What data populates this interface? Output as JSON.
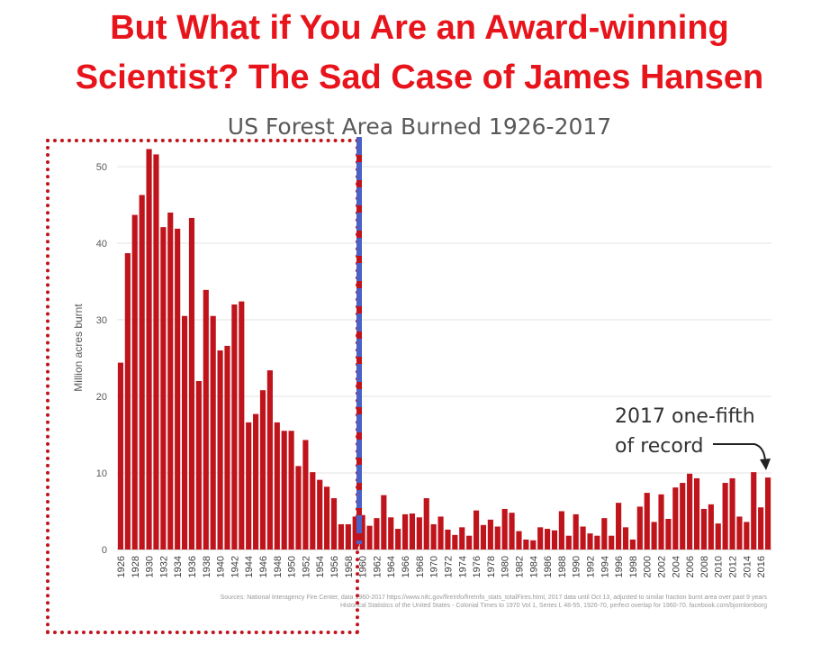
{
  "headline": {
    "line1": "But What if You Are an Award-winning",
    "line2": "Scientist? The Sad Case of James Hansen"
  },
  "annotation": {
    "line1": "2017 one-fifth",
    "line2": "of record"
  },
  "sources": {
    "line1": "Sources: National Interagency Fire Center, data 1960-2017 https://www.nifc.gov/fireInfo/fireInfo_stats_totalFires.html, 2017 data until Oct 13, adjusted to similar fraction burnt area over past 9 years",
    "line2": "Historical Statistics of the United States - Colonial Times to 1970 Vol 1, Series L 48-55, 1926-70, perfect overlap for 1960-70. facebook.com/bjornlomborg"
  },
  "colors": {
    "headline": "#e8141c",
    "bar": "#c0141c",
    "highlight_box": "#c0141c",
    "divider": "#4a62c8"
  },
  "chart_data": {
    "type": "bar",
    "title": "US Forest Area Burned 1926-2017",
    "ylabel": "Million acres burnt",
    "xlabel": "",
    "ylim": [
      0,
      52
    ],
    "yticks": [
      0,
      10,
      20,
      30,
      40,
      50
    ],
    "grid": true,
    "categories": [
      1926,
      1927,
      1928,
      1929,
      1930,
      1931,
      1932,
      1933,
      1934,
      1935,
      1936,
      1937,
      1938,
      1939,
      1940,
      1941,
      1942,
      1943,
      1944,
      1945,
      1946,
      1947,
      1948,
      1949,
      1950,
      1951,
      1952,
      1953,
      1954,
      1955,
      1956,
      1957,
      1958,
      1959,
      1960,
      1961,
      1962,
      1963,
      1964,
      1965,
      1966,
      1967,
      1968,
      1969,
      1970,
      1971,
      1972,
      1973,
      1974,
      1975,
      1976,
      1977,
      1978,
      1979,
      1980,
      1981,
      1982,
      1983,
      1984,
      1985,
      1986,
      1987,
      1988,
      1989,
      1990,
      1991,
      1992,
      1993,
      1994,
      1995,
      1996,
      1997,
      1998,
      1999,
      2000,
      2001,
      2002,
      2003,
      2004,
      2005,
      2006,
      2007,
      2008,
      2009,
      2010,
      2011,
      2012,
      2013,
      2014,
      2015,
      2016,
      2017
    ],
    "xtick_labels": [
      "1926",
      "1928",
      "1930",
      "1932",
      "1934",
      "1936",
      "1938",
      "1940",
      "1942",
      "1944",
      "1946",
      "1948",
      "1950",
      "1952",
      "1954",
      "1956",
      "1958",
      "1960",
      "1962",
      "1964",
      "1966",
      "1968",
      "1970",
      "1972",
      "1974",
      "1976",
      "1978",
      "1980",
      "1982",
      "1984",
      "1986",
      "1988",
      "1990",
      "1992",
      "1994",
      "1996",
      "1998",
      "2000",
      "2002",
      "2004",
      "2006",
      "2008",
      "2010",
      "2012",
      "2014",
      "2016"
    ],
    "values": [
      24.4,
      38.7,
      43.7,
      46.3,
      52.3,
      51.6,
      42.1,
      44.0,
      41.9,
      30.5,
      43.3,
      22.0,
      33.9,
      30.5,
      26.0,
      26.6,
      32.0,
      32.4,
      16.6,
      17.7,
      20.8,
      23.4,
      16.6,
      15.5,
      15.5,
      10.9,
      14.3,
      10.1,
      9.1,
      8.2,
      6.7,
      3.3,
      3.3,
      4.3,
      4.5,
      3.1,
      4.1,
      7.1,
      4.2,
      2.7,
      4.6,
      4.7,
      4.2,
      6.7,
      3.3,
      4.3,
      2.6,
      1.9,
      2.9,
      1.8,
      5.1,
      3.2,
      3.9,
      3.0,
      5.3,
      4.8,
      2.4,
      1.3,
      1.2,
      2.9,
      2.7,
      2.5,
      5.0,
      1.8,
      4.6,
      3.0,
      2.1,
      1.8,
      4.1,
      1.8,
      6.1,
      2.9,
      1.3,
      5.6,
      7.4,
      3.6,
      7.2,
      4.0,
      8.1,
      8.7,
      9.9,
      9.3,
      5.3,
      5.9,
      3.4,
      8.7,
      9.3,
      4.3,
      3.6,
      10.1,
      5.5,
      9.4
    ]
  }
}
